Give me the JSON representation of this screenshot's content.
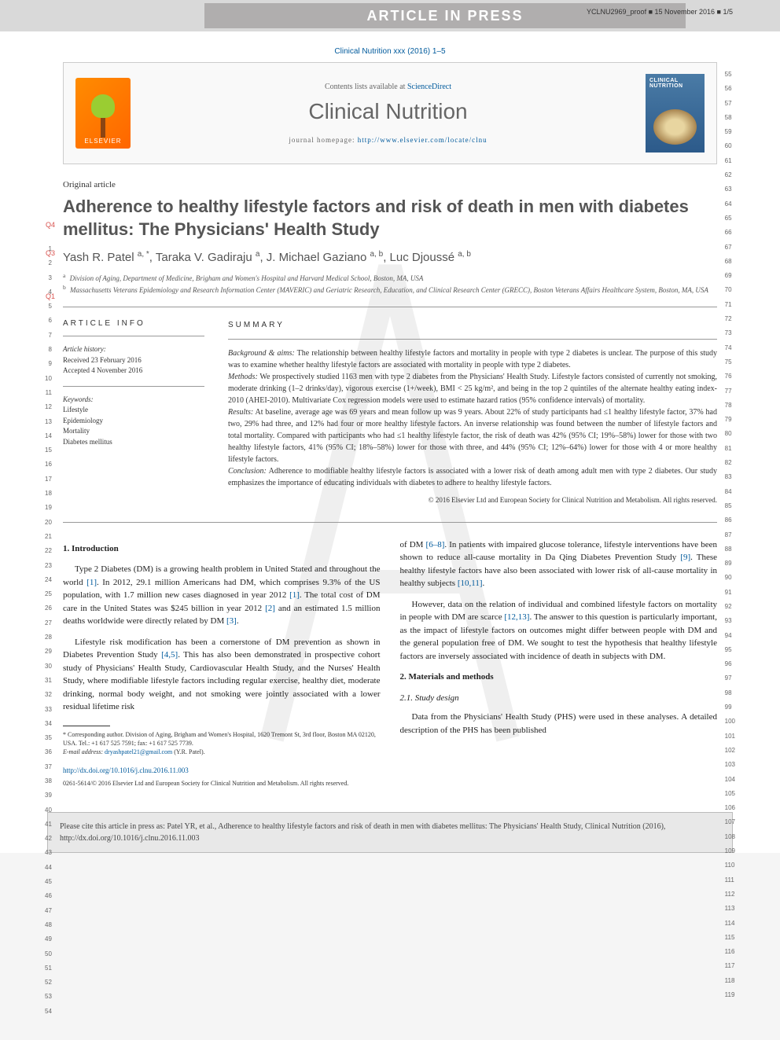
{
  "header": {
    "banner_text": "ARTICLE IN PRESS",
    "meta": "YCLNU2969_proof ■ 15 November 2016 ■ 1/5"
  },
  "journal": {
    "reference": "Clinical Nutrition xxx (2016) 1–5",
    "contents_prefix": "Contents lists available at ",
    "contents_link": "ScienceDirect",
    "name": "Clinical Nutrition",
    "homepage_prefix": "journal homepage: ",
    "homepage_url": "http://www.elsevier.com/locate/clnu",
    "publisher": "ELSEVIER",
    "cover_title": "CLINICAL NUTRITION"
  },
  "article": {
    "type": "Original article",
    "title": "Adherence to healthy lifestyle factors and risk of death in men with diabetes mellitus: The Physicians' Health Study",
    "q_markers": {
      "q4": "Q4",
      "q3": "Q3",
      "q1": "Q1"
    },
    "authors_html": "Yash R. Patel <sup>a, *</sup>, Taraka V. Gadiraju <sup>a</sup>, J. Michael Gaziano <sup>a, b</sup>, Luc Djoussé <sup>a, b</sup>",
    "affiliations": {
      "a": "Division of Aging, Department of Medicine, Brigham and Women's Hospital and Harvard Medical School, Boston, MA, USA",
      "b": "Massachusetts Veterans Epidemiology and Research Information Center (MAVERIC) and Geriatric Research, Education, and Clinical Research Center (GRECC), Boston Veterans Affairs Healthcare System, Boston, MA, USA"
    }
  },
  "info": {
    "heading": "ARTICLE INFO",
    "history_label": "Article history:",
    "received": "Received 23 February 2016",
    "accepted": "Accepted 4 November 2016",
    "keywords_label": "Keywords:",
    "keywords": [
      "Lifestyle",
      "Epidemiology",
      "Mortality",
      "Diabetes mellitus"
    ]
  },
  "summary": {
    "heading": "SUMMARY",
    "background_label": "Background & aims:",
    "background": "The relationship between healthy lifestyle factors and mortality in people with type 2 diabetes is unclear. The purpose of this study was to examine whether healthy lifestyle factors are associated with mortality in people with type 2 diabetes.",
    "methods_label": "Methods:",
    "methods": "We prospectively studied 1163 men with type 2 diabetes from the Physicians' Health Study. Lifestyle factors consisted of currently not smoking, moderate drinking (1–2 drinks/day), vigorous exercise (1+/week), BMI < 25 kg/m², and being in the top 2 quintiles of the alternate healthy eating index-2010 (AHEI-2010). Multivariate Cox regression models were used to estimate hazard ratios (95% confidence intervals) of mortality.",
    "results_label": "Results:",
    "results": "At baseline, average age was 69 years and mean follow up was 9 years. About 22% of study participants had ≤1 healthy lifestyle factor, 37% had two, 29% had three, and 12% had four or more healthy lifestyle factors. An inverse relationship was found between the number of lifestyle factors and total mortality. Compared with participants who had ≤1 healthy lifestyle factor, the risk of death was 42% (95% CI; 19%–58%) lower for those with two healthy lifestyle factors, 41% (95% CI; 18%–58%) lower for those with three, and 44% (95% CI; 12%–64%) lower for those with 4 or more healthy lifestyle factors.",
    "conclusion_label": "Conclusion:",
    "conclusion": "Adherence to modifiable healthy lifestyle factors is associated with a lower risk of death among adult men with type 2 diabetes. Our study emphasizes the importance of educating individuals with diabetes to adhere to healthy lifestyle factors.",
    "copyright": "© 2016 Elsevier Ltd and European Society for Clinical Nutrition and Metabolism. All rights reserved."
  },
  "body": {
    "intro_heading": "1. Introduction",
    "intro_p1": "Type 2 Diabetes (DM) is a growing health problem in United Stated and throughout the world [1]. In 2012, 29.1 million Americans had DM, which comprises 9.3% of the US population, with 1.7 million new cases diagnosed in year 2012 [1]. The total cost of DM care in the United States was $245 billion in year 2012 [2] and an estimated 1.5 million deaths worldwide were directly related by DM [3].",
    "intro_p2": "Lifestyle risk modification has been a cornerstone of DM prevention as shown in Diabetes Prevention Study [4,5]. This has also been demonstrated in prospective cohort study of Physicians' Health Study, Cardiovascular Health Study, and the Nurses' Health Study, where modifiable lifestyle factors including regular exercise, healthy diet, moderate drinking, normal body weight, and not smoking were jointly associated with a lower residual lifetime risk",
    "col2_p1": "of DM [6–8]. In patients with impaired glucose tolerance, lifestyle interventions have been shown to reduce all-cause mortality in Da Qing Diabetes Prevention Study [9]. These healthy lifestyle factors have also been associated with lower risk of all-cause mortality in healthy subjects [10,11].",
    "col2_p2": "However, data on the relation of individual and combined lifestyle factors on mortality in people with DM are scarce [12,13]. The answer to this question is particularly important, as the impact of lifestyle factors on outcomes might differ between people with DM and the general population free of DM. We sought to test the hypothesis that healthy lifestyle factors are inversely associated with incidence of death in subjects with DM.",
    "methods_heading": "2. Materials and methods",
    "design_heading": "2.1. Study design",
    "design_p1": "Data from the Physicians' Health Study (PHS) were used in these analyses. A detailed description of the PHS has been published"
  },
  "footnote": {
    "corresponding": "* Corresponding author. Division of Aging, Brigham and Women's Hospital, 1620 Tremont St, 3rd floor, Boston MA 02120, USA. Tel.: +1 617 525 7591; fax: +1 617 525 7739.",
    "email_label": "E-mail address:",
    "email": "dryashpatel21@gmail.com",
    "email_suffix": "(Y.R. Patel)."
  },
  "doi": {
    "url": "http://dx.doi.org/10.1016/j.clnu.2016.11.003",
    "copyright": "0261-5614/© 2016 Elsevier Ltd and European Society for Clinical Nutrition and Metabolism. All rights reserved."
  },
  "cite": {
    "text": "Please cite this article in press as: Patel YR, et al., Adherence to healthy lifestyle factors and risk of death in men with diabetes mellitus: The Physicians' Health Study, Clinical Nutrition (2016), http://dx.doi.org/10.1016/j.clnu.2016.11.003"
  },
  "line_numbers": {
    "left_start": 1,
    "left_end": 54,
    "right_start": 55,
    "right_end": 119
  },
  "colors": {
    "link": "#005a9c",
    "elsevier_orange": "#ff6600",
    "banner_gray": "#b0aeae",
    "q_marker": "#d9534f"
  }
}
